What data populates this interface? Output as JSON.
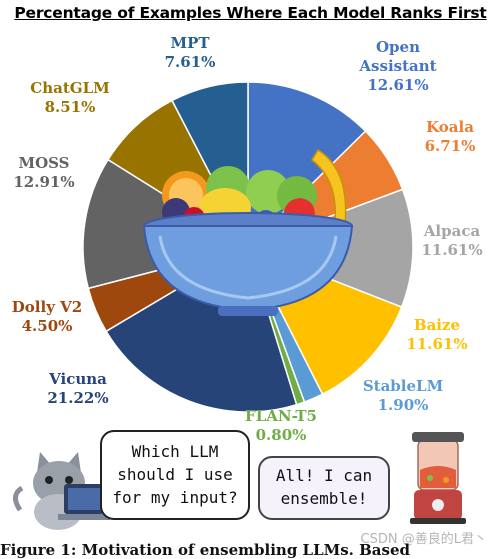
{
  "chart_data": {
    "type": "pie",
    "title": "Percentage of Examples Where Each Model Ranks First",
    "slices": [
      {
        "name": "Open Assistant",
        "value": 12.61,
        "label": "12.61%",
        "color": "#4472c4"
      },
      {
        "name": "Koala",
        "value": 6.71,
        "label": "6.71%",
        "color": "#ed7d31"
      },
      {
        "name": "Alpaca",
        "value": 11.61,
        "label": "11.61%",
        "color": "#a5a5a5"
      },
      {
        "name": "Baize",
        "value": 11.61,
        "label": "11.61%",
        "color": "#ffc000"
      },
      {
        "name": "StableLM",
        "value": 1.9,
        "label": "1.90%",
        "color": "#5b9bd5"
      },
      {
        "name": "FLAN-T5",
        "value": 0.8,
        "label": "0.80%",
        "color": "#70ad47"
      },
      {
        "name": "Vicuna",
        "value": 21.22,
        "label": "21.22%",
        "color": "#264478"
      },
      {
        "name": "Dolly V2",
        "value": 4.5,
        "label": "4.50%",
        "color": "#9e480e"
      },
      {
        "name": "MOSS",
        "value": 12.91,
        "label": "12.91%",
        "color": "#636363"
      },
      {
        "name": "ChatGLM",
        "value": 8.51,
        "label": "8.51%",
        "color": "#997300"
      },
      {
        "name": "MPT",
        "value": 7.61,
        "label": "7.61%",
        "color": "#255e91"
      }
    ]
  },
  "bubbles": {
    "question": [
      "Which LLM",
      "should I use",
      "for my input?"
    ],
    "answer": [
      "All! I can",
      "ensemble!"
    ]
  },
  "watermark": "CSDN @善良的L君丶",
  "caption": "Figure 1: Motivation of ensembling LLMs. Based"
}
